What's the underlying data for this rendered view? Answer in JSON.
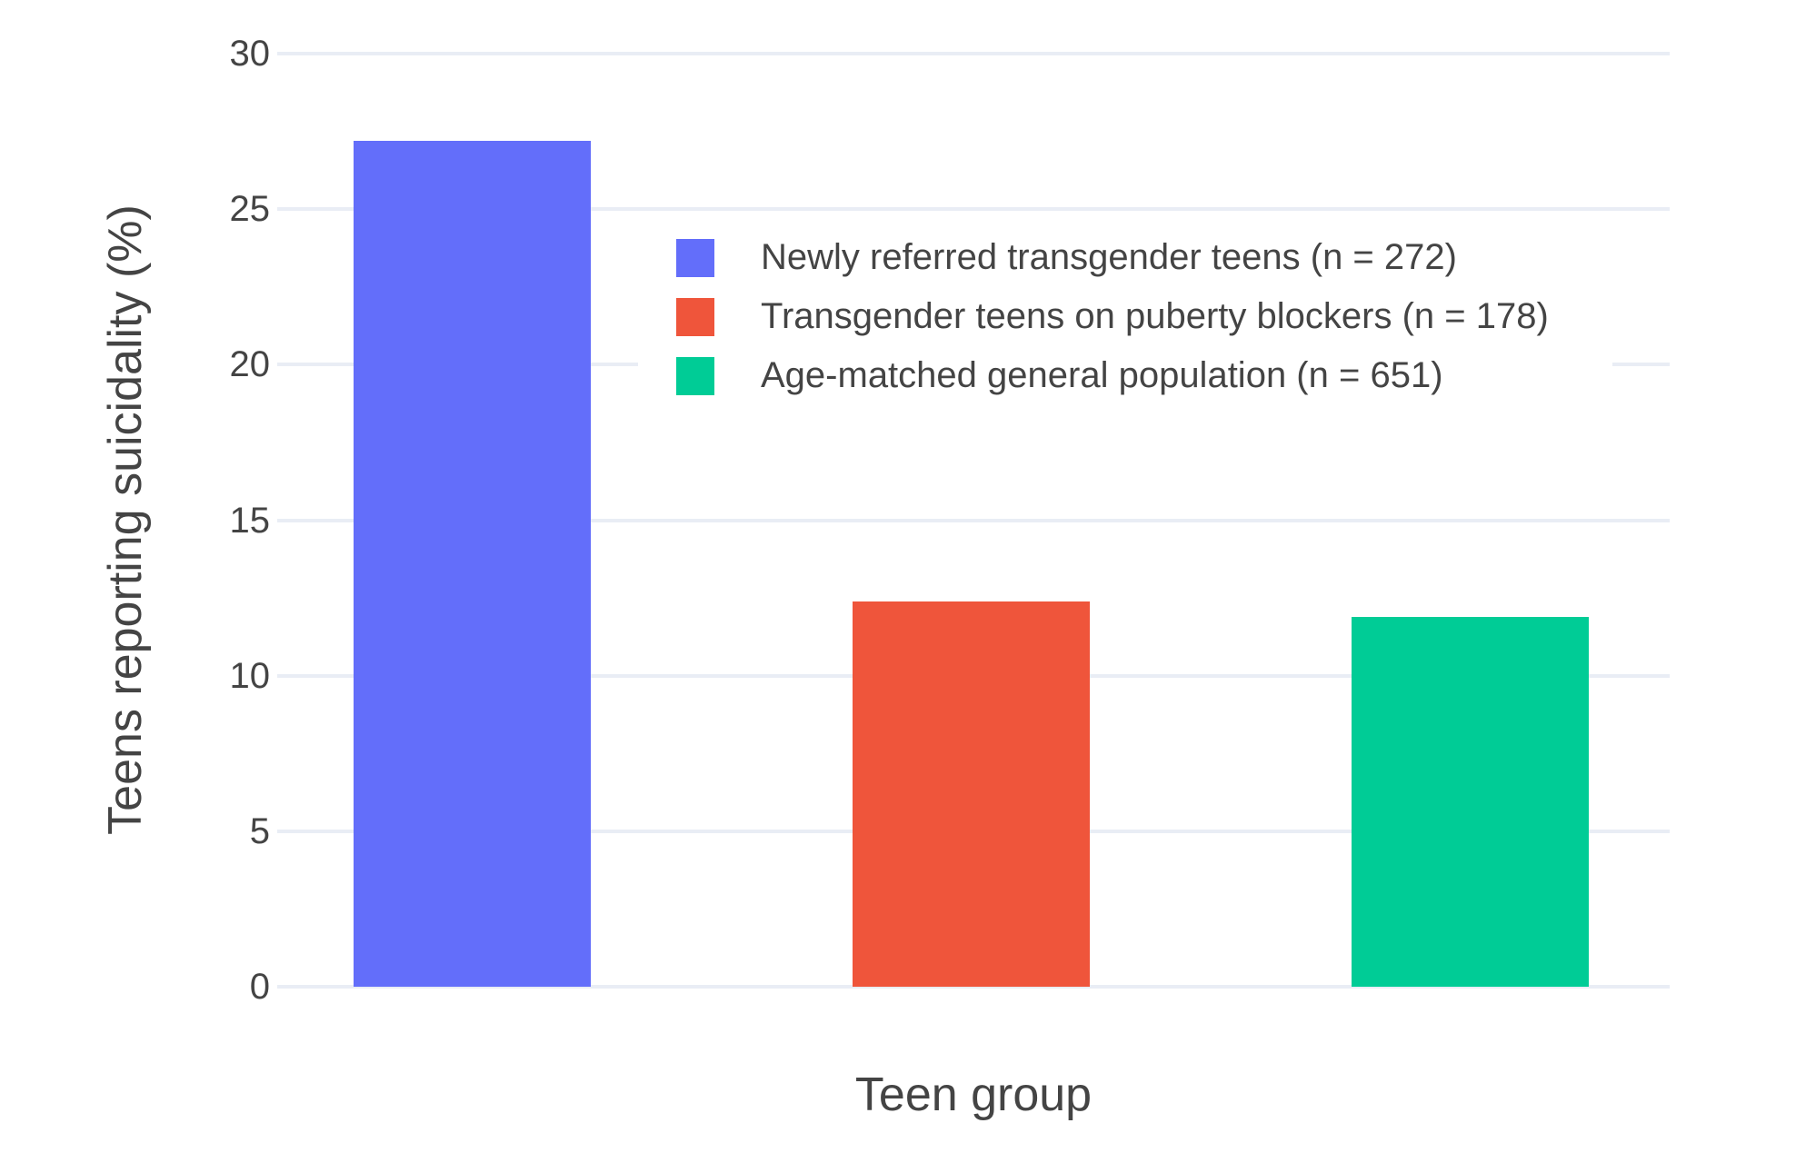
{
  "figure": {
    "background": "#ffffff",
    "text_color": "#444444",
    "grid_color": "#E9EDF5"
  },
  "chart_data": {
    "type": "bar",
    "title": "",
    "xlabel": "Teen group",
    "ylabel": "Teens reporting suicidality (%)",
    "ylim": [
      0,
      30
    ],
    "yticks": [
      0,
      5,
      10,
      15,
      20,
      25,
      30
    ],
    "grid": true,
    "legend_position": "inside top-center",
    "categories": [
      "Newly referred transgender teens",
      "Transgender teens on puberty blockers",
      "Age-matched general population"
    ],
    "series": [
      {
        "name": "Newly referred transgender teens (n = 272)",
        "value": 27.2,
        "color": "#636EFA"
      },
      {
        "name": "Transgender teens on puberty blockers (n = 178)",
        "value": 12.4,
        "color": "#EF553B"
      },
      {
        "name": "Age-matched general population (n = 651)",
        "value": 11.9,
        "color": "#00CC96"
      }
    ]
  }
}
